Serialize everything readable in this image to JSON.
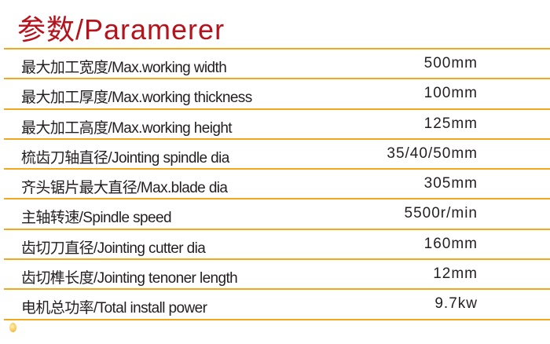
{
  "title": "参数/Paramerer",
  "accent_color": "#f2a81d",
  "title_color": "#b5121b",
  "rows": [
    {
      "label": "最大加工宽度/Max.working width",
      "value": "500mm"
    },
    {
      "label": "最大加工厚度/Max.working thickness",
      "value": "100mm"
    },
    {
      "label": "最大加工高度/Max.working height",
      "value": "125mm"
    },
    {
      "label": "梳齿刀轴直径/Jointing spindle dia",
      "value": "35/40/50mm"
    },
    {
      "label": "齐头锯片最大直径/Max.blade dia",
      "value": "305mm"
    },
    {
      "label": "主轴转速/Spindle speed",
      "value": "5500r/min"
    },
    {
      "label": "齿切刀直径/Jointing cutter dia",
      "value": "160mm"
    },
    {
      "label": "齿切榫长度/Jointing tenoner length",
      "value": "12mm"
    },
    {
      "label": "电机总功率/Total install power",
      "value": "9.7kw"
    }
  ]
}
